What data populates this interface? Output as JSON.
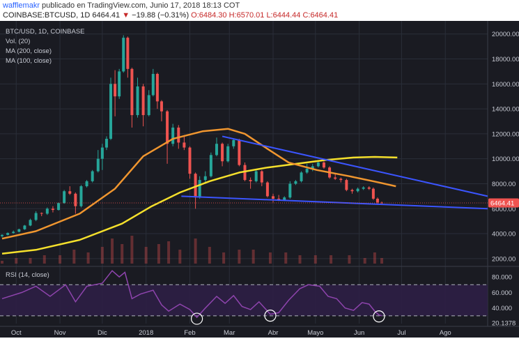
{
  "header": {
    "author": "wafflemakr",
    "published": "publicado en TradingView.com, Junio 17, 2018 18:13 COT",
    "symbol": "COINBASE:BTCUSD, 1D",
    "last": "6464.41",
    "arrow": "▼",
    "change": "−19.88 (−0.31%)",
    "open": "O:6484.30",
    "high": "H:6570.01",
    "low": "L:6444.44",
    "close": "C:6464.41"
  },
  "legend": {
    "title": "BTC/USD, 1D, COINBASE",
    "volume": "Vol. (20)",
    "ma200": "MA (200, close)",
    "ma100": "MA (100, close)",
    "rsi": "RSI (14, close)"
  },
  "price_label": "6464.41",
  "colors": {
    "background": "#1a1b22",
    "grid": "#2a2e39",
    "up": "#26a69a",
    "down": "#ef5350",
    "ma200": "#f5e02c",
    "ma100": "#f0962f",
    "trendline": "#3b55ff",
    "rsi_line": "#8e44ad",
    "rsi_band": "#2d1f45",
    "price_tag": "#ef5350",
    "text": "#c8cbd4"
  },
  "chart_data": {
    "type": "candlestick",
    "title": "BTC/USD, 1D, COINBASE",
    "x_ticks": [
      "Oct",
      "Nov",
      "Dic",
      "2018",
      "Feb",
      "Mar",
      "Abr",
      "Mayo",
      "Jun",
      "Jul",
      "Ago"
    ],
    "price_axis": {
      "ticks": [
        "20000.00",
        "18000.00",
        "16000.00",
        "14000.00",
        "12000.00",
        "10000.00",
        "8000.00",
        "6000.00",
        "4000.00",
        "2000.00"
      ],
      "range": [
        1600,
        20600
      ]
    },
    "rsi_axis": {
      "ticks": [
        "80.000",
        "60.000",
        "40.000",
        "20.1378"
      ],
      "range": [
        20,
        90
      ],
      "upper_band": 70,
      "lower_band": 30
    },
    "date_range": [
      "2017-09-21",
      "2018-08-31"
    ],
    "ohlc": [
      [
        "2017-09-21",
        3800,
        3950,
        3700,
        3900
      ],
      [
        "2017-09-25",
        3900,
        4100,
        3850,
        4050
      ],
      [
        "2017-09-29",
        4050,
        4250,
        4000,
        4150
      ],
      [
        "2017-10-03",
        4150,
        4400,
        4100,
        4350
      ],
      [
        "2017-10-07",
        4350,
        4700,
        4300,
        4650
      ],
      [
        "2017-10-11",
        4650,
        5200,
        4600,
        5100
      ],
      [
        "2017-10-15",
        5100,
        5800,
        5000,
        5650
      ],
      [
        "2017-10-19",
        5650,
        5700,
        5400,
        5600
      ],
      [
        "2017-10-23",
        5600,
        6100,
        5500,
        6000
      ],
      [
        "2017-10-27",
        6000,
        6200,
        5700,
        5900
      ],
      [
        "2017-10-31",
        5900,
        6500,
        5850,
        6450
      ],
      [
        "2017-11-04",
        6450,
        7500,
        6400,
        7400
      ],
      [
        "2017-11-08",
        7400,
        7800,
        7100,
        7200
      ],
      [
        "2017-11-12",
        7200,
        7300,
        5600,
        6200
      ],
      [
        "2017-11-16",
        6200,
        7900,
        6100,
        7800
      ],
      [
        "2017-11-20",
        7800,
        8300,
        7700,
        8200
      ],
      [
        "2017-11-24",
        8200,
        9100,
        8100,
        9000
      ],
      [
        "2017-11-28",
        9000,
        10700,
        8900,
        10000
      ],
      [
        "2017-12-01",
        10000,
        11200,
        9100,
        10900
      ],
      [
        "2017-12-04",
        10900,
        11800,
        10700,
        11600
      ],
      [
        "2017-12-07",
        11600,
        16500,
        11500,
        16000
      ],
      [
        "2017-12-10",
        16000,
        17100,
        13400,
        15000
      ],
      [
        "2017-12-13",
        15000,
        17200,
        14800,
        17000
      ],
      [
        "2017-12-16",
        17000,
        19900,
        16900,
        19700
      ],
      [
        "2017-12-19",
        19700,
        19800,
        16500,
        17200
      ],
      [
        "2017-12-22",
        17200,
        17300,
        12500,
        13500
      ],
      [
        "2017-12-26",
        13500,
        16500,
        13300,
        15800
      ],
      [
        "2017-12-30",
        15800,
        16000,
        12600,
        13500
      ],
      [
        "2018-01-03",
        13500,
        15500,
        13400,
        15100
      ],
      [
        "2018-01-06",
        15100,
        17200,
        15000,
        16800
      ],
      [
        "2018-01-09",
        16800,
        16900,
        14000,
        14600
      ],
      [
        "2018-01-12",
        14600,
        14700,
        13000,
        13800
      ],
      [
        "2018-01-16",
        13800,
        13900,
        9600,
        11200
      ],
      [
        "2018-01-20",
        11200,
        12800,
        11000,
        12500
      ],
      [
        "2018-01-24",
        12500,
        12700,
        10800,
        11300
      ],
      [
        "2018-01-28",
        11300,
        11900,
        10700,
        10900
      ],
      [
        "2018-02-01",
        10900,
        11000,
        8400,
        8800
      ],
      [
        "2018-02-05",
        8800,
        8900,
        6000,
        6900
      ],
      [
        "2018-02-08",
        6900,
        8600,
        6800,
        8300
      ],
      [
        "2018-02-12",
        8300,
        9000,
        8000,
        8600
      ],
      [
        "2018-02-16",
        8600,
        10500,
        8500,
        10300
      ],
      [
        "2018-02-20",
        10300,
        11700,
        10200,
        11200
      ],
      [
        "2018-02-24",
        11200,
        11300,
        9400,
        9800
      ],
      [
        "2018-02-28",
        9800,
        11200,
        9700,
        11000
      ],
      [
        "2018-03-04",
        11000,
        11600,
        10800,
        11500
      ],
      [
        "2018-03-08",
        11500,
        11600,
        9400,
        9500
      ],
      [
        "2018-03-12",
        9500,
        9700,
        8200,
        8300
      ],
      [
        "2018-03-16",
        8300,
        8500,
        7600,
        8200
      ],
      [
        "2018-03-20",
        8200,
        9200,
        8100,
        9000
      ],
      [
        "2018-03-24",
        9000,
        9100,
        7800,
        8100
      ],
      [
        "2018-03-28",
        8100,
        8200,
        6900,
        7000
      ],
      [
        "2018-04-01",
        7000,
        7200,
        6500,
        6800
      ],
      [
        "2018-04-05",
        6800,
        7100,
        6600,
        6700
      ],
      [
        "2018-04-09",
        6700,
        7000,
        6600,
        6900
      ],
      [
        "2018-04-13",
        6900,
        8200,
        6800,
        8000
      ],
      [
        "2018-04-17",
        8000,
        8300,
        7900,
        8200
      ],
      [
        "2018-04-21",
        8200,
        9000,
        8100,
        8900
      ],
      [
        "2018-04-25",
        8900,
        9600,
        8800,
        9200
      ],
      [
        "2018-04-29",
        9200,
        9600,
        9000,
        9400
      ],
      [
        "2018-05-03",
        9400,
        9900,
        9300,
        9700
      ],
      [
        "2018-05-07",
        9700,
        9800,
        9200,
        9300
      ],
      [
        "2018-05-11",
        9300,
        9400,
        8400,
        8500
      ],
      [
        "2018-05-15",
        8500,
        8800,
        8300,
        8400
      ],
      [
        "2018-05-19",
        8400,
        8500,
        8100,
        8300
      ],
      [
        "2018-05-23",
        8300,
        8400,
        7400,
        7500
      ],
      [
        "2018-05-27",
        7500,
        7600,
        7200,
        7400
      ],
      [
        "2018-05-31",
        7400,
        7700,
        7300,
        7600
      ],
      [
        "2018-06-04",
        7600,
        7800,
        7500,
        7700
      ],
      [
        "2018-06-08",
        7700,
        7800,
        7500,
        7600
      ],
      [
        "2018-06-11",
        7600,
        7700,
        6700,
        6800
      ],
      [
        "2018-06-14",
        6800,
        6900,
        6300,
        6500
      ],
      [
        "2018-06-17",
        6484.3,
        6570.01,
        6444.44,
        6464.41
      ]
    ],
    "ma200": [
      [
        "2017-09-21",
        2400
      ],
      [
        "2017-10-15",
        2700
      ],
      [
        "2017-11-15",
        3500
      ],
      [
        "2017-12-15",
        4800
      ],
      [
        "2018-01-05",
        6200
      ],
      [
        "2018-01-25",
        7300
      ],
      [
        "2018-02-15",
        8200
      ],
      [
        "2018-03-08",
        8900
      ],
      [
        "2018-03-28",
        9300
      ],
      [
        "2018-04-18",
        9600
      ],
      [
        "2018-05-08",
        9900
      ],
      [
        "2018-05-28",
        10100
      ],
      [
        "2018-06-12",
        10150
      ],
      [
        "2018-06-28",
        10100
      ]
    ],
    "ma100": [
      [
        "2017-09-21",
        3600
      ],
      [
        "2017-10-15",
        4200
      ],
      [
        "2017-11-15",
        5600
      ],
      [
        "2017-12-10",
        7600
      ],
      [
        "2017-12-30",
        10200
      ],
      [
        "2018-01-20",
        11600
      ],
      [
        "2018-02-10",
        12200
      ],
      [
        "2018-02-28",
        12400
      ],
      [
        "2018-03-12",
        12000
      ],
      [
        "2018-03-28",
        10800
      ],
      [
        "2018-04-12",
        9700
      ],
      [
        "2018-05-02",
        9100
      ],
      [
        "2018-05-25",
        8600
      ],
      [
        "2018-06-15",
        8100
      ],
      [
        "2018-06-27",
        7800
      ]
    ],
    "trendlines": [
      {
        "from": [
          "2018-02-24",
          11800
        ],
        "to": [
          "2018-08-31",
          7000
        ]
      },
      {
        "from": [
          "2018-01-26",
          7000
        ],
        "to": [
          "2018-08-31",
          6000
        ]
      }
    ],
    "volume": [
      [
        "2017-09-21",
        1
      ],
      [
        "2017-10-01",
        2
      ],
      [
        "2017-10-11",
        2
      ],
      [
        "2017-10-21",
        3
      ],
      [
        "2017-11-01",
        3
      ],
      [
        "2017-11-11",
        5
      ],
      [
        "2017-11-21",
        4
      ],
      [
        "2017-12-01",
        6
      ],
      [
        "2017-12-08",
        9
      ],
      [
        "2017-12-15",
        7
      ],
      [
        "2017-12-22",
        10
      ],
      [
        "2018-01-01",
        6
      ],
      [
        "2018-01-10",
        7
      ],
      [
        "2018-01-17",
        8
      ],
      [
        "2018-01-25",
        5
      ],
      [
        "2018-02-05",
        9
      ],
      [
        "2018-02-15",
        6
      ],
      [
        "2018-02-25",
        4
      ],
      [
        "2018-03-08",
        5
      ],
      [
        "2018-03-18",
        5
      ],
      [
        "2018-03-30",
        4
      ],
      [
        "2018-04-10",
        4
      ],
      [
        "2018-04-20",
        3
      ],
      [
        "2018-05-01",
        3
      ],
      [
        "2018-05-12",
        3
      ],
      [
        "2018-05-25",
        3
      ],
      [
        "2018-06-05",
        2
      ],
      [
        "2018-06-12",
        4
      ],
      [
        "2018-06-17",
        2
      ]
    ],
    "rsi": [
      [
        "2017-09-21",
        52
      ],
      [
        "2017-10-05",
        60
      ],
      [
        "2017-10-15",
        68
      ],
      [
        "2017-10-25",
        55
      ],
      [
        "2017-11-05",
        70
      ],
      [
        "2017-11-12",
        48
      ],
      [
        "2017-11-20",
        68
      ],
      [
        "2017-12-01",
        72
      ],
      [
        "2017-12-08",
        88
      ],
      [
        "2017-12-13",
        80
      ],
      [
        "2017-12-17",
        86
      ],
      [
        "2017-12-22",
        52
      ],
      [
        "2017-12-28",
        58
      ],
      [
        "2018-01-06",
        63
      ],
      [
        "2018-01-12",
        44
      ],
      [
        "2018-01-17",
        36
      ],
      [
        "2018-01-25",
        45
      ],
      [
        "2018-02-01",
        38
      ],
      [
        "2018-02-06",
        28
      ],
      [
        "2018-02-12",
        40
      ],
      [
        "2018-02-20",
        55
      ],
      [
        "2018-02-26",
        46
      ],
      [
        "2018-03-04",
        56
      ],
      [
        "2018-03-10",
        42
      ],
      [
        "2018-03-16",
        38
      ],
      [
        "2018-03-22",
        48
      ],
      [
        "2018-03-30",
        32
      ],
      [
        "2018-04-05",
        34
      ],
      [
        "2018-04-12",
        50
      ],
      [
        "2018-04-20",
        65
      ],
      [
        "2018-04-26",
        70
      ],
      [
        "2018-05-04",
        68
      ],
      [
        "2018-05-10",
        55
      ],
      [
        "2018-05-16",
        52
      ],
      [
        "2018-05-22",
        40
      ],
      [
        "2018-05-28",
        37
      ],
      [
        "2018-06-03",
        47
      ],
      [
        "2018-06-08",
        45
      ],
      [
        "2018-06-12",
        36
      ],
      [
        "2018-06-15",
        31
      ],
      [
        "2018-06-17",
        30
      ]
    ],
    "rsi_circles": [
      "2018-02-06",
      "2018-03-30",
      "2018-06-15"
    ]
  }
}
